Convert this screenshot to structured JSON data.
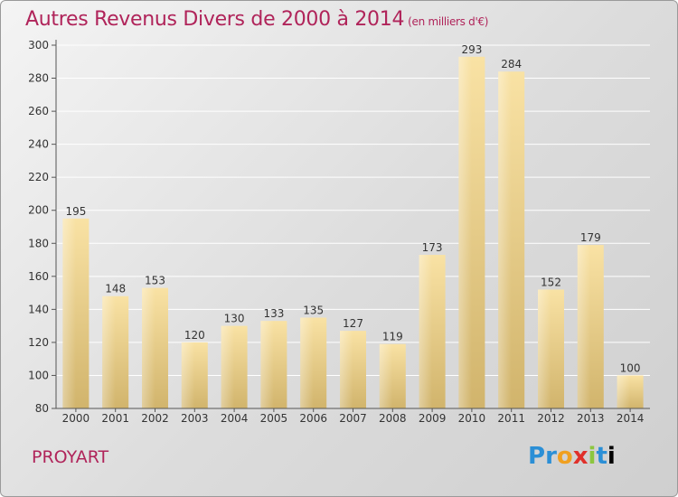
{
  "title": "Autres Revenus Divers de 2000 à 2014",
  "unit_note": "(en milliers d'€)",
  "place": "PROYART",
  "logo": "Proxiti",
  "colors": {
    "accent": "#b0245a",
    "bar_light": "#f7dc98",
    "bar_dark": "#d2b46a"
  },
  "chart_data": {
    "type": "bar",
    "categories": [
      "2000",
      "2001",
      "2002",
      "2003",
      "2004",
      "2005",
      "2006",
      "2007",
      "2008",
      "2009",
      "2010",
      "2011",
      "2012",
      "2013",
      "2014"
    ],
    "values": [
      195,
      148,
      153,
      120,
      130,
      133,
      135,
      127,
      119,
      173,
      293,
      284,
      152,
      179,
      100
    ],
    "ylim": [
      80,
      300
    ],
    "yticks": [
      80,
      100,
      120,
      140,
      160,
      180,
      200,
      220,
      240,
      260,
      280,
      300
    ],
    "grid": true,
    "xlabel": "",
    "ylabel": ""
  }
}
